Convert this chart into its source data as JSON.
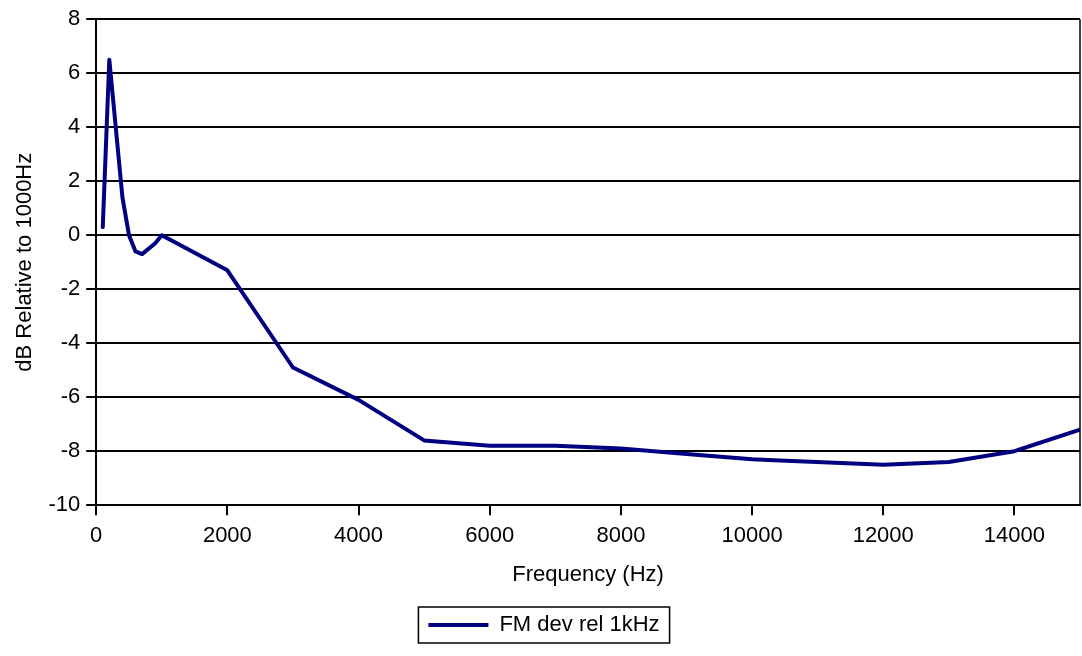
{
  "chart_data": {
    "type": "line",
    "xlabel": "Frequency (Hz)",
    "ylabel": "dB Relative to 1000Hz",
    "x": [
      100,
      200,
      400,
      500,
      600,
      700,
      900,
      1000,
      2000,
      3000,
      4000,
      5000,
      6000,
      7000,
      8000,
      9000,
      10000,
      12000,
      13000,
      14000,
      15000
    ],
    "series": [
      {
        "name": "FM dev rel 1kHz",
        "color": "#000080",
        "values": [
          0.3,
          6.5,
          1.4,
          0,
          -0.6,
          -0.7,
          -0.3,
          0,
          -1.3,
          -4.9,
          -6.1,
          -7.6,
          -7.8,
          -7.8,
          -7.9,
          -8.1,
          -8.3,
          -8.5,
          -8.4,
          -8.0,
          -7.2
        ]
      }
    ],
    "xlim": [
      0,
      15000
    ],
    "xticks": [
      0,
      2000,
      4000,
      6000,
      8000,
      10000,
      12000,
      14000
    ],
    "ylim": [
      -10,
      8
    ],
    "yticks": [
      -10,
      -8,
      -6,
      -4,
      -2,
      0,
      2,
      4,
      6,
      8
    ],
    "grid": "y",
    "legend": "bottom",
    "marker": "none",
    "line_style": "solid"
  }
}
